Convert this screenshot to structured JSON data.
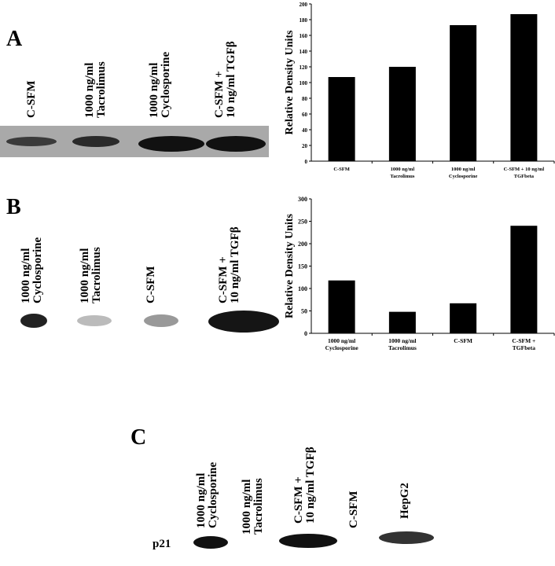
{
  "panel_labels": [
    "A",
    "B",
    "C"
  ],
  "blot_a_lanes": [
    [
      "C-SFM"
    ],
    [
      "1000 ng/ml",
      "Tacrolimus"
    ],
    [
      "1000 ng/ml",
      "Cyclosporine"
    ],
    [
      "C-SFM +",
      "10 ng/ml TGFβ"
    ]
  ],
  "blot_b_lanes": [
    [
      "1000 ng/ml",
      "Cyclosporine"
    ],
    [
      "1000 ng/ml",
      "Tacrolimus"
    ],
    [
      "C-SFM"
    ],
    [
      "C-SFM +",
      "10 ng/ml TGFβ"
    ]
  ],
  "blot_c_lanes": [
    [
      "1000 ng/ml",
      "Cyclosporine"
    ],
    [
      "1000 ng/ml",
      "Tacrolimus"
    ],
    [
      "C-SFM +",
      "10 ng/ml TGFβ"
    ],
    [
      "C-SFM"
    ],
    [
      "HepG2"
    ]
  ],
  "blot_c_row_label": "p21",
  "chart_data": [
    {
      "type": "bar",
      "y_label": "Relative Density Units",
      "color": "#000000",
      "categories": [
        [
          "C-SFM"
        ],
        [
          "1000 ng/ml",
          "Tacrolimus"
        ],
        [
          "1000 ng/ml",
          "Cyclosporine"
        ],
        [
          "C-SFM + 10 ng/ml",
          "TGFbeta"
        ]
      ],
      "values": [
        107,
        120,
        173,
        187
      ],
      "ylim": [
        0,
        200
      ],
      "yticks": [
        0,
        20,
        40,
        60,
        80,
        100,
        120,
        140,
        160,
        180,
        200
      ]
    },
    {
      "type": "bar",
      "y_label": "Relative Density Units",
      "color": "#000000",
      "categories": [
        [
          "1000 ng/ml",
          "Cyclosporine"
        ],
        [
          "1000 ng/ml",
          "Tacrolimus"
        ],
        [
          "C-SFM"
        ],
        [
          "C-SFM +",
          "TGFbeta"
        ]
      ],
      "values": [
        118,
        48,
        67,
        240
      ],
      "ylim": [
        0,
        300
      ],
      "yticks": [
        0,
        50,
        100,
        150,
        200,
        250,
        300
      ]
    }
  ]
}
